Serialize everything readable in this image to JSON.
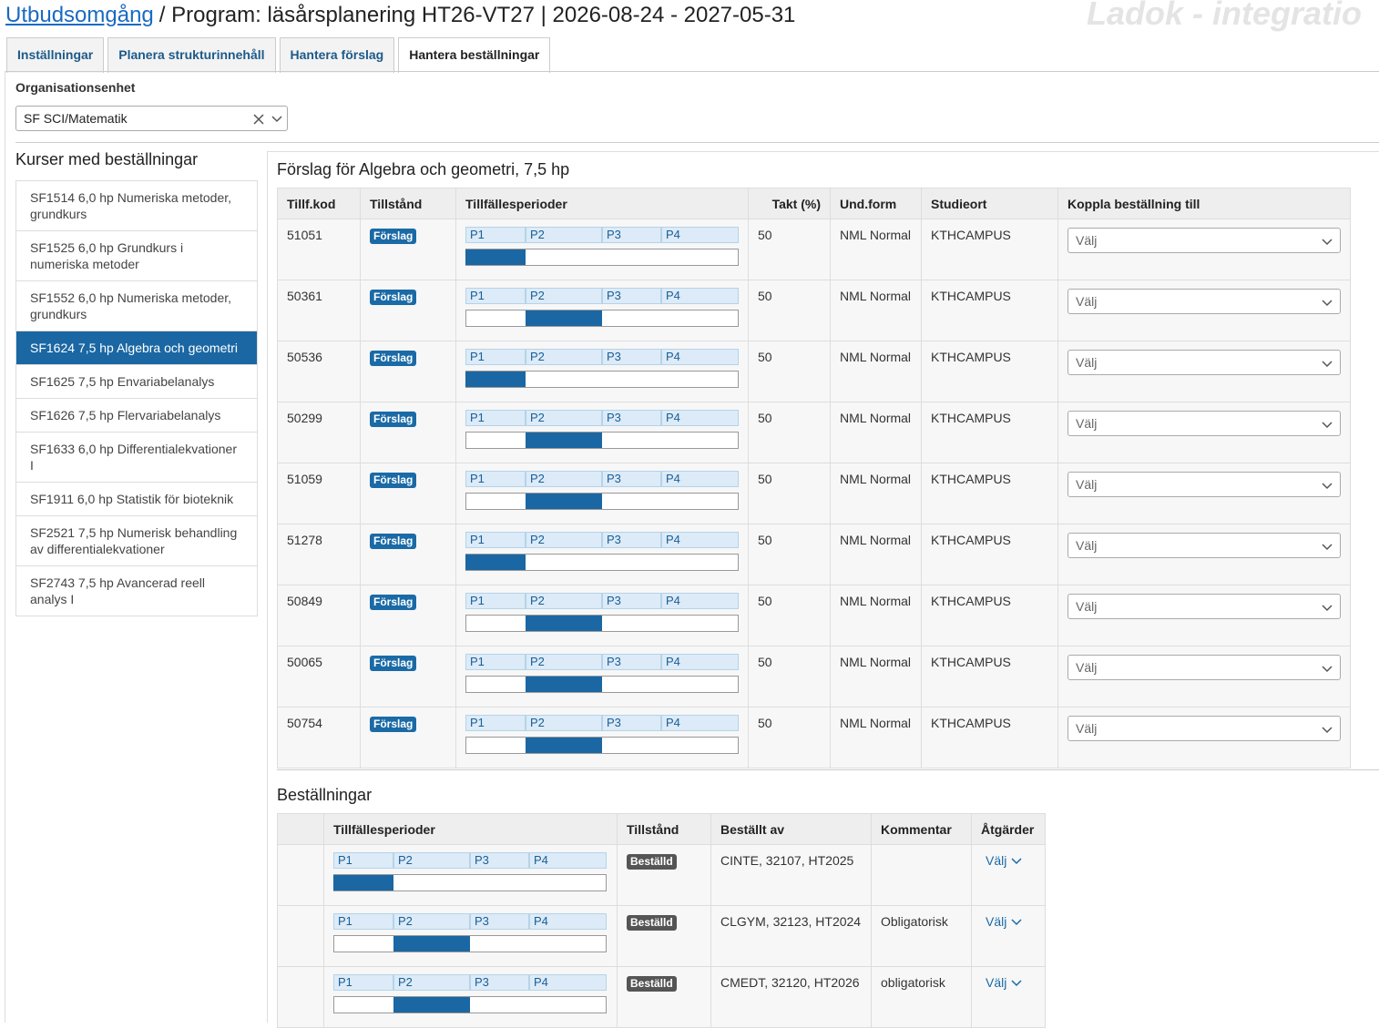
{
  "header": {
    "link": "Utbudsomgång",
    "title": "/ Program: läsårsplanering HT26-VT27 | 2026-08-24 - 2027-05-31",
    "watermark": "Ladok - integratio"
  },
  "tabs": {
    "items": [
      "Inställningar",
      "Planera strukturinnehåll",
      "Hantera förslag",
      "Hantera beställningar"
    ],
    "active": 3
  },
  "org_unit": {
    "label": "Organisationsenhet",
    "value": "SF SCI/Matematik"
  },
  "courses": {
    "title": "Kurser med beställningar",
    "active": 3,
    "items": [
      "SF1514 6,0 hp Numeriska metoder, grundkurs",
      "SF1525 6,0 hp Grundkurs i numeriska metoder",
      "SF1552 6,0 hp Numeriska metoder, grundkurs",
      "SF1624 7,5 hp Algebra och geometri",
      "SF1625 7,5 hp Envariabelanalys",
      "SF1626 7,5 hp Flervariabelanalys",
      "SF1633 6,0 hp Differentialekvationer I",
      "SF1911 6,0 hp Statistik för bioteknik",
      "SF2521 7,5 hp Numerisk behandling av differentialekvationer",
      "SF2743 7,5 hp Avancerad reell analys I"
    ]
  },
  "periods": [
    "P1",
    "P2",
    "P3",
    "P4"
  ],
  "proposals": {
    "title": "Förslag för Algebra och geometri, 7,5 hp",
    "columns": [
      "Tillf.kod",
      "Tillstånd",
      "Tillfällesperioder",
      "Takt (%)",
      "Und.form",
      "Studieort",
      "Koppla beställning till"
    ],
    "rows": [
      {
        "code": "51051",
        "status": "Förslag",
        "period": 0,
        "takt": "50",
        "form": "NML Normal",
        "place": "KTHCAMPUS",
        "select": "Välj"
      },
      {
        "code": "50361",
        "status": "Förslag",
        "period": 1,
        "takt": "50",
        "form": "NML Normal",
        "place": "KTHCAMPUS",
        "select": "Välj"
      },
      {
        "code": "50536",
        "status": "Förslag",
        "period": 0,
        "takt": "50",
        "form": "NML Normal",
        "place": "KTHCAMPUS",
        "select": "Välj"
      },
      {
        "code": "50299",
        "status": "Förslag",
        "period": 1,
        "takt": "50",
        "form": "NML Normal",
        "place": "KTHCAMPUS",
        "select": "Välj"
      },
      {
        "code": "51059",
        "status": "Förslag",
        "period": 1,
        "takt": "50",
        "form": "NML Normal",
        "place": "KTHCAMPUS",
        "select": "Välj"
      },
      {
        "code": "51278",
        "status": "Förslag",
        "period": 0,
        "takt": "50",
        "form": "NML Normal",
        "place": "KTHCAMPUS",
        "select": "Välj"
      },
      {
        "code": "50849",
        "status": "Förslag",
        "period": 1,
        "takt": "50",
        "form": "NML Normal",
        "place": "KTHCAMPUS",
        "select": "Välj"
      },
      {
        "code": "50065",
        "status": "Förslag",
        "period": 1,
        "takt": "50",
        "form": "NML Normal",
        "place": "KTHCAMPUS",
        "select": "Välj"
      },
      {
        "code": "50754",
        "status": "Förslag",
        "period": 1,
        "takt": "50",
        "form": "NML Normal",
        "place": "KTHCAMPUS",
        "select": "Välj"
      }
    ]
  },
  "orders": {
    "title": "Beställningar",
    "columns": [
      "Tillfällesperioder",
      "Tillstånd",
      "Beställt av",
      "Kommentar",
      "Åtgärder"
    ],
    "rows": [
      {
        "period": 0,
        "status": "Beställd",
        "ordered_by": "CINTE, 32107, HT2025",
        "comment": null,
        "action": "Välj"
      },
      {
        "period": 1,
        "status": "Beställd",
        "ordered_by": "CLGYM, 32123, HT2024",
        "comment": "Obligatorisk",
        "action": "Välj"
      },
      {
        "period": 1,
        "status": "Beställd",
        "ordered_by": "CMEDT, 32120, HT2026",
        "comment": "obligatorisk",
        "action": "Välj"
      }
    ]
  }
}
